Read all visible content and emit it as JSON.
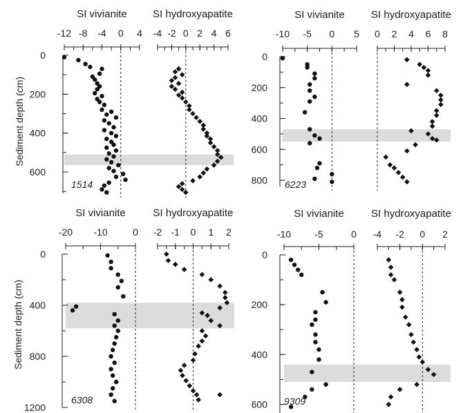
{
  "chart_data": [
    {
      "type": "scatter",
      "core_label": "1514",
      "ylabel": "Sediment depth (cm)",
      "ylim": [
        0,
        710
      ],
      "yticks": [
        0,
        200,
        400,
        600
      ],
      "shade": [
        510,
        565
      ],
      "panels": [
        {
          "title": "SI vivianite",
          "marker": "circle",
          "xlim": [
            -12,
            4
          ],
          "xticks": [
            -12,
            -8,
            -4,
            0,
            4
          ],
          "points": [
            [
              -12,
              10
            ],
            [
              -9,
              25
            ],
            [
              -7.5,
              45
            ],
            [
              -6.5,
              60
            ],
            [
              -4,
              70
            ],
            [
              -4.5,
              95
            ],
            [
              -6,
              110
            ],
            [
              -5.5,
              125
            ],
            [
              -5,
              145
            ],
            [
              -4.5,
              160
            ],
            [
              -5,
              175
            ],
            [
              -5.5,
              195
            ],
            [
              -4,
              210
            ],
            [
              -5,
              225
            ],
            [
              -4.5,
              240
            ],
            [
              -3.5,
              255
            ],
            [
              -4,
              280
            ],
            [
              -2,
              290
            ],
            [
              -3,
              305
            ],
            [
              -1,
              320
            ],
            [
              -3.5,
              335
            ],
            [
              -2.5,
              350
            ],
            [
              -1.5,
              370
            ],
            [
              -3.5,
              385
            ],
            [
              -2,
              400
            ],
            [
              -1,
              415
            ],
            [
              -3,
              430
            ],
            [
              -2,
              445
            ],
            [
              -1.5,
              460
            ],
            [
              -3,
              475
            ],
            [
              -1,
              490
            ],
            [
              -2.5,
              505
            ],
            [
              -1.5,
              520
            ],
            [
              -3,
              535
            ],
            [
              -2,
              550
            ],
            [
              -0.5,
              565
            ],
            [
              -2.5,
              580
            ],
            [
              -1.5,
              595
            ],
            [
              0.5,
              610
            ],
            [
              -1,
              625
            ],
            [
              1,
              640
            ],
            [
              -2.5,
              655
            ],
            [
              -3.5,
              670
            ],
            [
              -4,
              690
            ],
            [
              -3,
              705
            ]
          ]
        },
        {
          "title": "SI hydroxyapatite",
          "marker": "diamond",
          "xlim": [
            -4,
            6
          ],
          "xticks": [
            -4,
            -2,
            0,
            2,
            4,
            6
          ],
          "points": [
            [
              -1,
              70
            ],
            [
              -1.5,
              85
            ],
            [
              -0.5,
              100
            ],
            [
              -1.5,
              115
            ],
            [
              -2,
              130
            ],
            [
              -1,
              145
            ],
            [
              -2,
              160
            ],
            [
              -1.5,
              175
            ],
            [
              -0.5,
              190
            ],
            [
              -1,
              205
            ],
            [
              -0.5,
              220
            ],
            [
              0,
              240
            ],
            [
              0.5,
              260
            ],
            [
              0.5,
              280
            ],
            [
              1,
              300
            ],
            [
              1.5,
              320
            ],
            [
              2,
              340
            ],
            [
              2.5,
              360
            ],
            [
              2.5,
              380
            ],
            [
              3,
              400
            ],
            [
              3,
              415
            ],
            [
              3.5,
              430
            ],
            [
              3.5,
              450
            ],
            [
              4,
              470
            ],
            [
              4.5,
              490
            ],
            [
              4.5,
              510
            ],
            [
              5,
              525
            ],
            [
              4.5,
              545
            ],
            [
              4,
              565
            ],
            [
              3,
              585
            ],
            [
              2.5,
              605
            ],
            [
              2,
              625
            ],
            [
              1,
              645
            ],
            [
              -0.5,
              660
            ],
            [
              -1,
              675
            ],
            [
              -0.5,
              690
            ],
            [
              0,
              705
            ]
          ]
        }
      ]
    },
    {
      "type": "scatter",
      "core_label": "6223",
      "ylabel": "",
      "ylim": [
        0,
        840
      ],
      "yticks": [
        0,
        200,
        400,
        600,
        800
      ],
      "shade": [
        470,
        550
      ],
      "panels": [
        {
          "title": "SI vivianite",
          "marker": "circle",
          "xlim": [
            -10,
            5
          ],
          "xticks": [
            -10,
            -5,
            0,
            5
          ],
          "points": [
            [
              -10,
              10
            ],
            [
              -5,
              50
            ],
            [
              -5,
              70
            ],
            [
              -3.5,
              110
            ],
            [
              -3.5,
              140
            ],
            [
              -4.5,
              180
            ],
            [
              -4.5,
              220
            ],
            [
              -3.5,
              260
            ],
            [
              -4.5,
              290
            ],
            [
              -5.5,
              360
            ],
            [
              -4.5,
              470
            ],
            [
              -3.5,
              510
            ],
            [
              -2.5,
              530
            ],
            [
              -4.5,
              560
            ],
            [
              -2.5,
              690
            ],
            [
              -3,
              720
            ],
            [
              -3.5,
              790
            ],
            [
              0,
              760
            ],
            [
              0,
              810
            ]
          ]
        },
        {
          "title": "SI hydroxyapatite",
          "marker": "diamond",
          "xlim": [
            0,
            8
          ],
          "xticks": [
            0,
            2,
            4,
            6,
            8
          ],
          "points": [
            [
              3.5,
              20
            ],
            [
              5,
              50
            ],
            [
              5.5,
              70
            ],
            [
              6,
              90
            ],
            [
              6,
              120
            ],
            [
              3.5,
              180
            ],
            [
              7,
              220
            ],
            [
              7.5,
              250
            ],
            [
              7.5,
              280
            ],
            [
              7.5,
              310
            ],
            [
              7,
              350
            ],
            [
              7,
              380
            ],
            [
              6.5,
              420
            ],
            [
              6.5,
              450
            ],
            [
              4,
              480
            ],
            [
              6,
              500
            ],
            [
              6.5,
              530
            ],
            [
              7,
              540
            ],
            [
              4.5,
              570
            ],
            [
              3.5,
              610
            ],
            [
              1,
              650
            ],
            [
              1.5,
              700
            ],
            [
              2,
              720
            ],
            [
              2.5,
              750
            ],
            [
              3,
              780
            ],
            [
              3.5,
              810
            ]
          ]
        }
      ]
    },
    {
      "type": "scatter",
      "core_label": "6308",
      "ylabel": "Sediment depth (cm)",
      "ylim": [
        0,
        1200
      ],
      "yticks": [
        0,
        400,
        800,
        1200
      ],
      "shade": [
        380,
        580
      ],
      "panels": [
        {
          "title": "SI vivianite",
          "marker": "circle",
          "xlim": [
            -20,
            0
          ],
          "xticks": [
            -20,
            -10,
            0
          ],
          "points": [
            [
              -8,
              10
            ],
            [
              -7,
              60
            ],
            [
              -7,
              110
            ],
            [
              -5,
              160
            ],
            [
              -4,
              210
            ],
            [
              -5,
              260
            ],
            [
              -3.5,
              330
            ],
            [
              -17,
              410
            ],
            [
              -18,
              440
            ],
            [
              -6,
              470
            ],
            [
              -5,
              520
            ],
            [
              -6,
              560
            ],
            [
              -5,
              600
            ],
            [
              -5.5,
              650
            ],
            [
              -6,
              700
            ],
            [
              -6.5,
              750
            ],
            [
              -7,
              800
            ],
            [
              -6,
              850
            ],
            [
              -7,
              900
            ],
            [
              -6.5,
              950
            ],
            [
              -5.5,
              1000
            ],
            [
              -6.5,
              1050
            ],
            [
              -7,
              1100
            ],
            [
              -6,
              1150
            ]
          ]
        },
        {
          "title": "SI hydroxyapatite",
          "marker": "diamond",
          "xlim": [
            -2,
            2
          ],
          "xticks": [
            -2,
            -1,
            0,
            1,
            2
          ],
          "points": [
            [
              -1.5,
              0
            ],
            [
              -1.4,
              50
            ],
            [
              -1,
              80
            ],
            [
              -0.5,
              120
            ],
            [
              0.5,
              160
            ],
            [
              1,
              200
            ],
            [
              1.5,
              250
            ],
            [
              1.8,
              300
            ],
            [
              1.8,
              340
            ],
            [
              1.9,
              380
            ],
            [
              1.5,
              420
            ],
            [
              0.5,
              460
            ],
            [
              0.8,
              480
            ],
            [
              1,
              520
            ],
            [
              1.5,
              560
            ],
            [
              0.5,
              600
            ],
            [
              0.7,
              640
            ],
            [
              0.5,
              680
            ],
            [
              0.3,
              720
            ],
            [
              0.1,
              780
            ],
            [
              0,
              830
            ],
            [
              -0.5,
              870
            ],
            [
              -0.7,
              910
            ],
            [
              -0.6,
              950
            ],
            [
              -0.4,
              990
            ],
            [
              -0.2,
              1030
            ],
            [
              0,
              1070
            ],
            [
              0.2,
              1100
            ],
            [
              0.3,
              1140
            ],
            [
              1.5,
              1100
            ]
          ]
        }
      ]
    },
    {
      "type": "scatter",
      "core_label": "9309",
      "ylabel": "",
      "ylim": [
        0,
        640
      ],
      "yticks": [
        0,
        200,
        400,
        600
      ],
      "shade": [
        440,
        510
      ],
      "panels": [
        {
          "title": "SI vivianite",
          "marker": "circle",
          "xlim": [
            -10,
            0
          ],
          "xticks": [
            -10,
            -5,
            0
          ],
          "points": [
            [
              -9,
              20
            ],
            [
              -8.5,
              40
            ],
            [
              -8,
              60
            ],
            [
              -7.5,
              80
            ],
            [
              -4.5,
              150
            ],
            [
              -4,
              190
            ],
            [
              -5.5,
              230
            ],
            [
              -5.5,
              260
            ],
            [
              -6,
              280
            ],
            [
              -5.5,
              320
            ],
            [
              -5.5,
              350
            ],
            [
              -5,
              380
            ],
            [
              -5,
              420
            ],
            [
              -6,
              470
            ],
            [
              -4,
              520
            ],
            [
              -6,
              540
            ],
            [
              -7,
              570
            ],
            [
              -9,
              610
            ]
          ]
        },
        {
          "title": "SI hydroxyapatite",
          "marker": "diamond",
          "xlim": [
            -4,
            2
          ],
          "xticks": [
            -4,
            -2,
            0,
            2
          ],
          "points": [
            [
              -3,
              20
            ],
            [
              -2.8,
              50
            ],
            [
              -2.8,
              80
            ],
            [
              -2.5,
              100
            ],
            [
              -2,
              150
            ],
            [
              -1.8,
              180
            ],
            [
              -1.8,
              210
            ],
            [
              -1.5,
              250
            ],
            [
              -1.2,
              280
            ],
            [
              -1,
              320
            ],
            [
              -0.8,
              350
            ],
            [
              -0.5,
              380
            ],
            [
              -0.3,
              410
            ],
            [
              0,
              430
            ],
            [
              0.5,
              460
            ],
            [
              1,
              480
            ],
            [
              -0.5,
              520
            ],
            [
              -2,
              540
            ],
            [
              -2.8,
              570
            ],
            [
              -3,
              600
            ]
          ]
        }
      ]
    }
  ]
}
